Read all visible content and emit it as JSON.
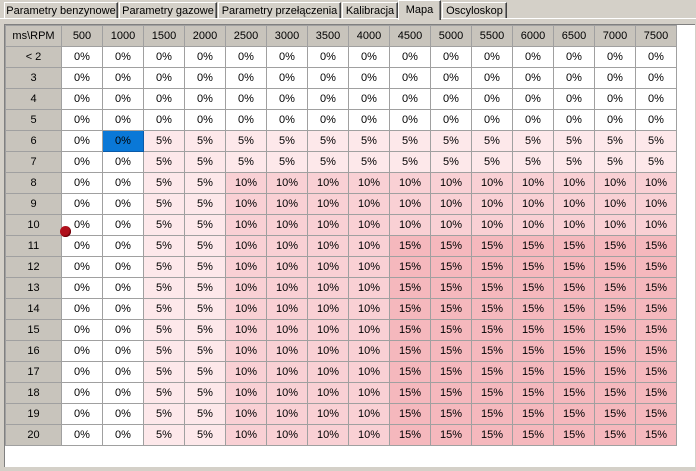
{
  "tabs": [
    {
      "label": "Parametry benzynowe",
      "active": false
    },
    {
      "label": "Parametry gazowe",
      "active": false
    },
    {
      "label": "Parametry przełączenia",
      "active": false
    },
    {
      "label": "Kalibracja",
      "active": false
    },
    {
      "label": "Mapa",
      "active": true
    },
    {
      "label": "Oscyloskop",
      "active": false
    }
  ],
  "map": {
    "corner_label": "ms\\RPM",
    "rpm_columns": [
      "500",
      "1000",
      "1500",
      "2000",
      "2500",
      "3000",
      "3500",
      "4000",
      "4500",
      "5000",
      "5500",
      "6000",
      "6500",
      "7000",
      "7500"
    ],
    "rows": [
      {
        "label": "< 2",
        "values": [
          "0%",
          "0%",
          "0%",
          "0%",
          "0%",
          "0%",
          "0%",
          "0%",
          "0%",
          "0%",
          "0%",
          "0%",
          "0%",
          "0%",
          "0%"
        ]
      },
      {
        "label": "3",
        "values": [
          "0%",
          "0%",
          "0%",
          "0%",
          "0%",
          "0%",
          "0%",
          "0%",
          "0%",
          "0%",
          "0%",
          "0%",
          "0%",
          "0%",
          "0%"
        ]
      },
      {
        "label": "4",
        "values": [
          "0%",
          "0%",
          "0%",
          "0%",
          "0%",
          "0%",
          "0%",
          "0%",
          "0%",
          "0%",
          "0%",
          "0%",
          "0%",
          "0%",
          "0%"
        ]
      },
      {
        "label": "5",
        "values": [
          "0%",
          "0%",
          "0%",
          "0%",
          "0%",
          "0%",
          "0%",
          "0%",
          "0%",
          "0%",
          "0%",
          "0%",
          "0%",
          "0%",
          "0%"
        ]
      },
      {
        "label": "6",
        "values": [
          "0%",
          "0%",
          "5%",
          "5%",
          "5%",
          "5%",
          "5%",
          "5%",
          "5%",
          "5%",
          "5%",
          "5%",
          "5%",
          "5%",
          "5%"
        ]
      },
      {
        "label": "7",
        "values": [
          "0%",
          "0%",
          "5%",
          "5%",
          "5%",
          "5%",
          "5%",
          "5%",
          "5%",
          "5%",
          "5%",
          "5%",
          "5%",
          "5%",
          "5%"
        ]
      },
      {
        "label": "8",
        "values": [
          "0%",
          "0%",
          "5%",
          "5%",
          "10%",
          "10%",
          "10%",
          "10%",
          "10%",
          "10%",
          "10%",
          "10%",
          "10%",
          "10%",
          "10%"
        ]
      },
      {
        "label": "9",
        "values": [
          "0%",
          "0%",
          "5%",
          "5%",
          "10%",
          "10%",
          "10%",
          "10%",
          "10%",
          "10%",
          "10%",
          "10%",
          "10%",
          "10%",
          "10%"
        ]
      },
      {
        "label": "10",
        "values": [
          "0%",
          "0%",
          "5%",
          "5%",
          "10%",
          "10%",
          "10%",
          "10%",
          "10%",
          "10%",
          "10%",
          "10%",
          "10%",
          "10%",
          "10%"
        ]
      },
      {
        "label": "11",
        "values": [
          "0%",
          "0%",
          "5%",
          "5%",
          "10%",
          "10%",
          "10%",
          "10%",
          "15%",
          "15%",
          "15%",
          "15%",
          "15%",
          "15%",
          "15%"
        ]
      },
      {
        "label": "12",
        "values": [
          "0%",
          "0%",
          "5%",
          "5%",
          "10%",
          "10%",
          "10%",
          "10%",
          "15%",
          "15%",
          "15%",
          "15%",
          "15%",
          "15%",
          "15%"
        ]
      },
      {
        "label": "13",
        "values": [
          "0%",
          "0%",
          "5%",
          "5%",
          "10%",
          "10%",
          "10%",
          "10%",
          "15%",
          "15%",
          "15%",
          "15%",
          "15%",
          "15%",
          "15%"
        ]
      },
      {
        "label": "14",
        "values": [
          "0%",
          "0%",
          "5%",
          "5%",
          "10%",
          "10%",
          "10%",
          "10%",
          "15%",
          "15%",
          "15%",
          "15%",
          "15%",
          "15%",
          "15%"
        ]
      },
      {
        "label": "15",
        "values": [
          "0%",
          "0%",
          "5%",
          "5%",
          "10%",
          "10%",
          "10%",
          "10%",
          "15%",
          "15%",
          "15%",
          "15%",
          "15%",
          "15%",
          "15%"
        ]
      },
      {
        "label": "16",
        "values": [
          "0%",
          "0%",
          "5%",
          "5%",
          "10%",
          "10%",
          "10%",
          "10%",
          "15%",
          "15%",
          "15%",
          "15%",
          "15%",
          "15%",
          "15%"
        ]
      },
      {
        "label": "17",
        "values": [
          "0%",
          "0%",
          "5%",
          "5%",
          "10%",
          "10%",
          "10%",
          "10%",
          "15%",
          "15%",
          "15%",
          "15%",
          "15%",
          "15%",
          "15%"
        ]
      },
      {
        "label": "18",
        "values": [
          "0%",
          "0%",
          "5%",
          "5%",
          "10%",
          "10%",
          "10%",
          "10%",
          "15%",
          "15%",
          "15%",
          "15%",
          "15%",
          "15%",
          "15%"
        ]
      },
      {
        "label": "19",
        "values": [
          "0%",
          "0%",
          "5%",
          "5%",
          "10%",
          "10%",
          "10%",
          "10%",
          "15%",
          "15%",
          "15%",
          "15%",
          "15%",
          "15%",
          "15%"
        ]
      },
      {
        "label": "20",
        "values": [
          "0%",
          "0%",
          "5%",
          "5%",
          "10%",
          "10%",
          "10%",
          "10%",
          "15%",
          "15%",
          "15%",
          "15%",
          "15%",
          "15%",
          "15%"
        ]
      }
    ],
    "selected_cell": {
      "row_label": "6",
      "rpm": "1000"
    },
    "operating_point": {
      "row_label": "9",
      "rpm": "500"
    },
    "colors": {
      "0%": "#ffffff",
      "5%": "#fde8ea",
      "10%": "#f9d0d4",
      "15%": "#f5b8bd",
      "selected": "#0a78d7",
      "header": "#c8c4bc",
      "marker": "#b0101c"
    }
  }
}
